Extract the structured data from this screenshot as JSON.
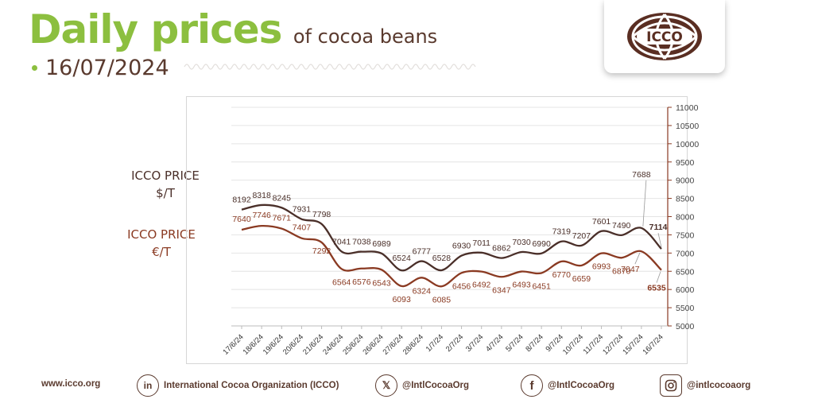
{
  "header": {
    "title_main": "Daily prices",
    "title_sub": "of cocoa beans",
    "date": "16/07/2024"
  },
  "logo": {
    "text": "ICCO",
    "icon": "icco-globe-logo"
  },
  "legend": {
    "usd_line1": "ICCO PRICE",
    "usd_line2": "$/T",
    "eur_line1": "ICCO PRICE",
    "eur_line2": "€/T"
  },
  "colors": {
    "green": "#8cbf3f",
    "usd_line": "#4a2f29",
    "eur_line": "#8a3a22",
    "text": "#5a3a2e"
  },
  "chart_data": {
    "type": "line",
    "categories": [
      "17/6/24",
      "18/6/24",
      "19/6/24",
      "20/6/24",
      "21/6/24",
      "24/6/24",
      "25/6/24",
      "26/6/24",
      "27/6/24",
      "28/6/24",
      "1/7/24",
      "2/7/24",
      "3/7/24",
      "4/7/24",
      "5/7/24",
      "8/7/24",
      "9/7/24",
      "10/7/24",
      "11/7/24",
      "12/7/24",
      "15/7/24",
      "16/7/24"
    ],
    "series": [
      {
        "name": "ICCO PRICE $/T",
        "values": [
          8192,
          8318,
          8245,
          7931,
          7798,
          7041,
          7038,
          6989,
          6524,
          6777,
          6528,
          6930,
          7011,
          6862,
          7030,
          6990,
          7319,
          7207,
          7601,
          7490,
          7688,
          7114
        ]
      },
      {
        "name": "ICCO PRICE €/T",
        "values": [
          7640,
          7746,
          7671,
          7407,
          7292,
          6564,
          6576,
          6543,
          6093,
          6324,
          6085,
          6456,
          6492,
          6347,
          6493,
          6451,
          6770,
          6659,
          6993,
          6870,
          7047,
          6535
        ]
      }
    ],
    "ylim": [
      5000,
      11000
    ],
    "yticks": [
      "5000",
      "5500",
      "6000",
      "6500",
      "7000",
      "7500",
      "8000",
      "8500",
      "9000",
      "9500",
      "10000",
      "10500",
      "11000"
    ],
    "grid": true,
    "y_axis_side": "right"
  },
  "footer": {
    "website": "www.icco.org",
    "linkedin": "International Cocoa Organization (ICCO)",
    "x": "@IntlCocoaOrg",
    "facebook": "@IntlCocoaOrg",
    "instagram": "@intlcocoaorg"
  }
}
